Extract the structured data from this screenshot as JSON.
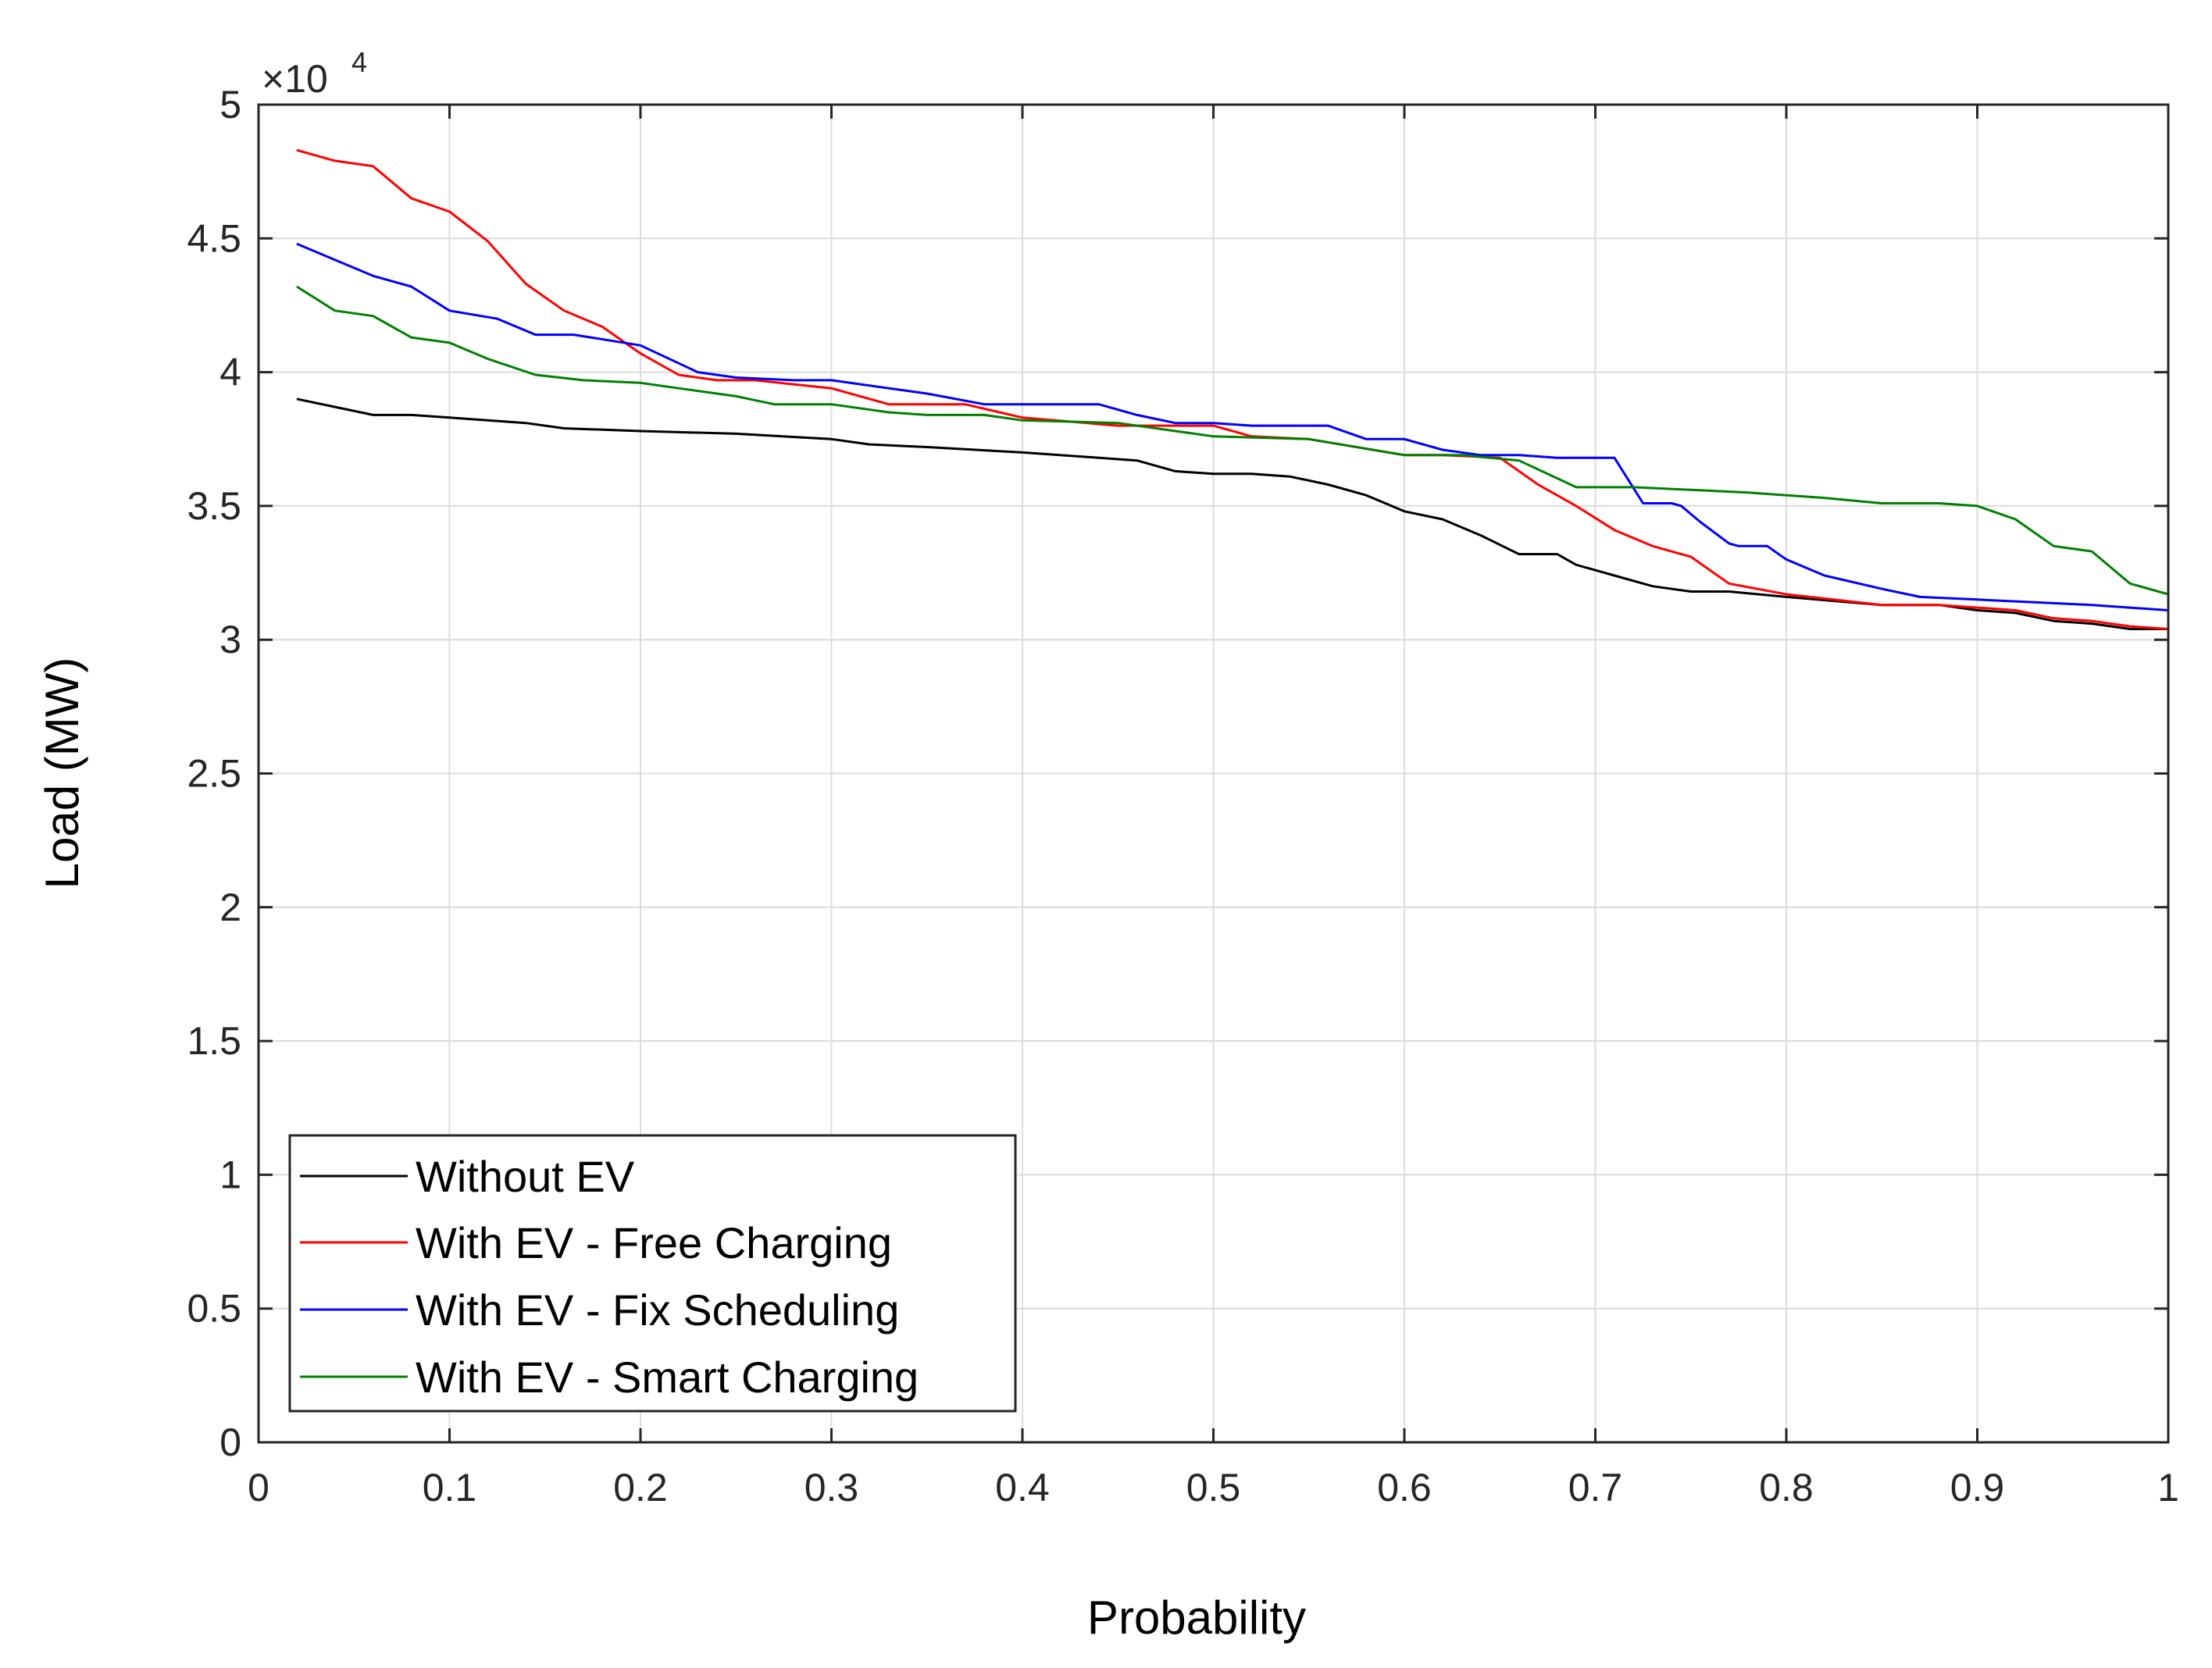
{
  "chart_data": {
    "type": "line",
    "title": "",
    "xlabel": "Probability",
    "ylabel": "Load (MW)",
    "y_multiplier": {
      "times": "×10",
      "exponent": "4"
    },
    "xlim": [
      0,
      1
    ],
    "ylim": [
      0,
      5
    ],
    "xticks": [
      0,
      0.1,
      0.2,
      0.3,
      0.4,
      0.5,
      0.6,
      0.7,
      0.8,
      0.9,
      1
    ],
    "xtick_labels": [
      "0",
      "0.1",
      "0.2",
      "0.3",
      "0.4",
      "0.5",
      "0.6",
      "0.7",
      "0.8",
      "0.9",
      "1"
    ],
    "yticks": [
      0,
      0.5,
      1,
      1.5,
      2,
      2.5,
      3,
      3.5,
      4,
      4.5,
      5
    ],
    "ytick_labels": [
      "0",
      "0.5",
      "1",
      "1.5",
      "2",
      "2.5",
      "3",
      "3.5",
      "4",
      "4.5",
      "5"
    ],
    "grid": true,
    "legend_position": "bottom-left",
    "series": [
      {
        "name": "Without EV",
        "color": "#000000",
        "x": [
          0.02,
          0.04,
          0.06,
          0.08,
          0.1,
          0.12,
          0.14,
          0.16,
          0.2,
          0.25,
          0.3,
          0.32,
          0.35,
          0.4,
          0.44,
          0.46,
          0.48,
          0.5,
          0.52,
          0.54,
          0.56,
          0.58,
          0.6,
          0.62,
          0.64,
          0.66,
          0.68,
          0.69,
          0.71,
          0.73,
          0.75,
          0.77,
          0.8,
          0.85,
          0.88,
          0.9,
          0.92,
          0.94,
          0.96,
          0.98,
          1.0
        ],
        "y": [
          3.9,
          3.87,
          3.84,
          3.84,
          3.83,
          3.82,
          3.81,
          3.79,
          3.78,
          3.77,
          3.75,
          3.73,
          3.72,
          3.7,
          3.68,
          3.67,
          3.63,
          3.62,
          3.62,
          3.61,
          3.58,
          3.54,
          3.48,
          3.45,
          3.39,
          3.32,
          3.32,
          3.28,
          3.24,
          3.2,
          3.18,
          3.18,
          3.16,
          3.13,
          3.13,
          3.11,
          3.1,
          3.07,
          3.06,
          3.04,
          3.04
        ]
      },
      {
        "name": "With EV - Free Charging",
        "color": "#ff0000",
        "x": [
          0.02,
          0.04,
          0.06,
          0.08,
          0.1,
          0.12,
          0.14,
          0.16,
          0.18,
          0.2,
          0.22,
          0.24,
          0.26,
          0.3,
          0.33,
          0.37,
          0.4,
          0.45,
          0.5,
          0.52,
          0.55,
          0.6,
          0.62,
          0.65,
          0.67,
          0.69,
          0.71,
          0.73,
          0.75,
          0.77,
          0.8,
          0.85,
          0.88,
          0.9,
          0.92,
          0.94,
          0.96,
          0.98,
          1.0
        ],
        "y": [
          4.83,
          4.79,
          4.77,
          4.65,
          4.6,
          4.49,
          4.33,
          4.23,
          4.17,
          4.07,
          3.99,
          3.97,
          3.97,
          3.94,
          3.88,
          3.88,
          3.83,
          3.8,
          3.8,
          3.76,
          3.75,
          3.69,
          3.69,
          3.68,
          3.58,
          3.5,
          3.41,
          3.35,
          3.31,
          3.21,
          3.17,
          3.13,
          3.13,
          3.12,
          3.11,
          3.08,
          3.07,
          3.05,
          3.04
        ]
      },
      {
        "name": "With EV - Fix Scheduling",
        "color": "#0000ff",
        "x": [
          0.02,
          0.04,
          0.06,
          0.08,
          0.1,
          0.125,
          0.145,
          0.165,
          0.2,
          0.23,
          0.25,
          0.28,
          0.3,
          0.33,
          0.35,
          0.38,
          0.4,
          0.44,
          0.46,
          0.48,
          0.5,
          0.52,
          0.54,
          0.56,
          0.58,
          0.6,
          0.62,
          0.64,
          0.66,
          0.68,
          0.69,
          0.71,
          0.725,
          0.74,
          0.745,
          0.755,
          0.77,
          0.775,
          0.79,
          0.8,
          0.82,
          0.85,
          0.87,
          0.9,
          0.93,
          0.96,
          1.0
        ],
        "y": [
          4.48,
          4.42,
          4.36,
          4.32,
          4.23,
          4.2,
          4.14,
          4.14,
          4.1,
          4.0,
          3.98,
          3.97,
          3.97,
          3.94,
          3.92,
          3.88,
          3.88,
          3.88,
          3.84,
          3.81,
          3.81,
          3.8,
          3.8,
          3.8,
          3.75,
          3.75,
          3.71,
          3.69,
          3.69,
          3.68,
          3.68,
          3.68,
          3.51,
          3.51,
          3.5,
          3.44,
          3.36,
          3.35,
          3.35,
          3.3,
          3.24,
          3.19,
          3.16,
          3.15,
          3.14,
          3.13,
          3.11
        ]
      },
      {
        "name": "With EV - Smart Charging",
        "color": "#008000",
        "x": [
          0.02,
          0.04,
          0.06,
          0.08,
          0.1,
          0.12,
          0.145,
          0.17,
          0.2,
          0.22,
          0.25,
          0.27,
          0.3,
          0.33,
          0.35,
          0.38,
          0.4,
          0.45,
          0.5,
          0.55,
          0.6,
          0.63,
          0.66,
          0.69,
          0.72,
          0.75,
          0.78,
          0.82,
          0.85,
          0.88,
          0.9,
          0.92,
          0.94,
          0.96,
          0.98,
          1.0
        ],
        "y": [
          4.32,
          4.23,
          4.21,
          4.13,
          4.11,
          4.05,
          3.99,
          3.97,
          3.96,
          3.94,
          3.91,
          3.88,
          3.88,
          3.85,
          3.84,
          3.84,
          3.82,
          3.81,
          3.76,
          3.75,
          3.69,
          3.69,
          3.67,
          3.57,
          3.57,
          3.56,
          3.55,
          3.53,
          3.51,
          3.51,
          3.5,
          3.45,
          3.35,
          3.33,
          3.21,
          3.17
        ]
      }
    ]
  }
}
